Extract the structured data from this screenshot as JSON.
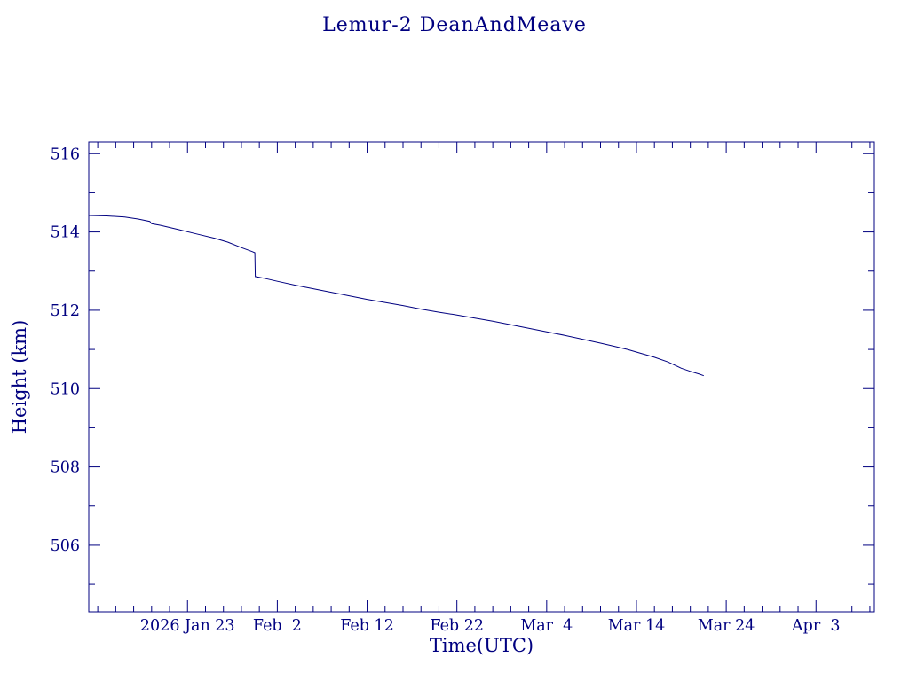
{
  "page": {
    "background": "#ffffff",
    "accent": "#000080"
  },
  "chart_data": {
    "type": "line",
    "title": "Lemur-2 DeanAndMeave",
    "xlabel": "Time(UTC)",
    "ylabel": "Height (km)",
    "line_color": "#000080",
    "grid": false,
    "legend": "none",
    "x_axis": {
      "units": "days from 2026 Jan 12",
      "range_days": [
        0,
        87.5
      ],
      "minor_tick_step_days": 2,
      "major_ticks": [
        {
          "day": 11,
          "label": "2026 Jan 23"
        },
        {
          "day": 21,
          "label": "Feb  2"
        },
        {
          "day": 31,
          "label": "Feb 12"
        },
        {
          "day": 41,
          "label": "Feb 22"
        },
        {
          "day": 51,
          "label": "Mar  4"
        },
        {
          "day": 61,
          "label": "Mar 14"
        },
        {
          "day": 71,
          "label": "Mar 24"
        },
        {
          "day": 81,
          "label": "Apr  3"
        }
      ]
    },
    "y_axis": {
      "units": "km",
      "range_km": [
        504.3,
        516.3
      ],
      "minor_tick_step_km": 1,
      "major_ticks": [
        506,
        508,
        510,
        512,
        514,
        516
      ]
    },
    "series": [
      {
        "name": "Lemur-2 DeanAndMeave height",
        "points": [
          [
            0,
            514.42
          ],
          [
            2,
            514.41
          ],
          [
            4,
            514.38
          ],
          [
            5.5,
            514.33
          ],
          [
            6.8,
            514.27
          ],
          [
            7.0,
            514.21
          ],
          [
            8,
            514.17
          ],
          [
            10,
            514.06
          ],
          [
            12,
            513.95
          ],
          [
            14,
            513.84
          ],
          [
            15.5,
            513.74
          ],
          [
            17,
            513.6
          ],
          [
            18.2,
            513.5
          ],
          [
            18.5,
            513.47
          ],
          [
            18.55,
            512.86
          ],
          [
            19.5,
            512.82
          ],
          [
            21,
            512.74
          ],
          [
            23,
            512.64
          ],
          [
            25,
            512.55
          ],
          [
            27,
            512.46
          ],
          [
            29,
            512.37
          ],
          [
            31,
            512.28
          ],
          [
            33,
            512.2
          ],
          [
            35,
            512.12
          ],
          [
            37,
            512.03
          ],
          [
            39,
            511.95
          ],
          [
            41,
            511.88
          ],
          [
            43,
            511.8
          ],
          [
            45,
            511.72
          ],
          [
            47,
            511.63
          ],
          [
            49,
            511.54
          ],
          [
            51,
            511.45
          ],
          [
            53,
            511.36
          ],
          [
            55,
            511.26
          ],
          [
            57,
            511.16
          ],
          [
            58.5,
            511.08
          ],
          [
            60,
            511.0
          ],
          [
            61.5,
            510.9
          ],
          [
            63,
            510.8
          ],
          [
            64.5,
            510.68
          ],
          [
            66,
            510.52
          ],
          [
            67,
            510.44
          ],
          [
            68,
            510.37
          ],
          [
            68.5,
            510.33
          ]
        ]
      }
    ]
  }
}
